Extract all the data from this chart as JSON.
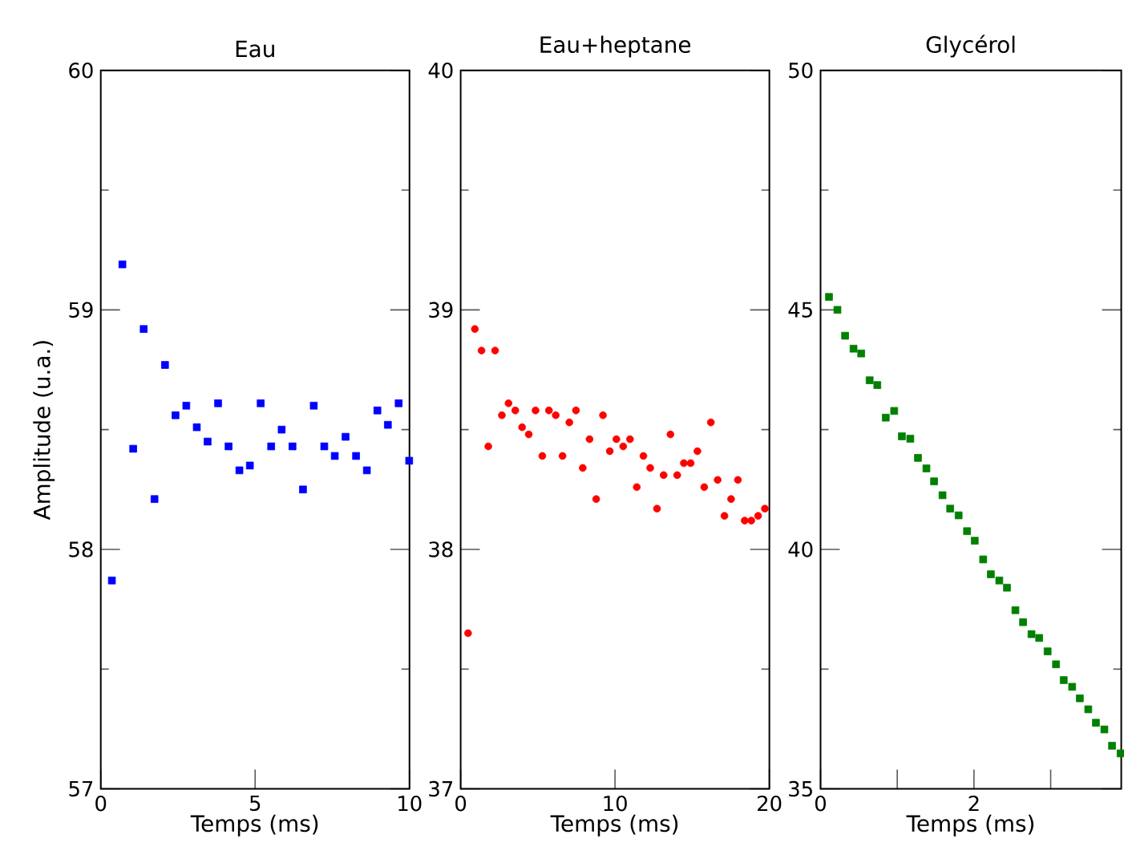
{
  "chart_data": [
    {
      "type": "scatter",
      "title": "Eau",
      "xlabel": "Temps (ms)",
      "ylabel": "Amplitude (u.a.)",
      "marker": "square",
      "color": "#0000ff",
      "x": [
        0.36,
        0.7,
        1.05,
        1.39,
        1.74,
        2.08,
        2.42,
        2.77,
        3.11,
        3.46,
        3.8,
        4.14,
        4.49,
        4.83,
        5.18,
        5.52,
        5.86,
        6.21,
        6.55,
        6.9,
        7.24,
        7.58,
        7.93,
        8.27,
        8.62,
        8.96,
        9.3,
        9.65,
        9.99
      ],
      "values": [
        57.87,
        59.19,
        58.42,
        58.92,
        58.21,
        58.77,
        58.56,
        58.6,
        58.51,
        58.45,
        58.61,
        58.43,
        58.33,
        58.35,
        58.61,
        58.43,
        58.5,
        58.43,
        58.25,
        58.6,
        58.43,
        58.39,
        58.47,
        58.39,
        58.33,
        58.58,
        58.52,
        58.61,
        58.37
      ],
      "xlim": [
        0,
        10
      ],
      "ylim": [
        57,
        60
      ],
      "xticks": [
        0,
        5,
        10
      ],
      "yticks": [
        57,
        58,
        59,
        60
      ]
    },
    {
      "type": "scatter",
      "title": "Eau+heptane",
      "xlabel": "Temps (ms)",
      "marker": "circle",
      "color": "#ff0000",
      "x": [
        0.48,
        0.92,
        1.35,
        1.79,
        2.23,
        2.67,
        3.1,
        3.54,
        3.98,
        4.41,
        4.85,
        5.29,
        5.72,
        6.16,
        6.6,
        7.04,
        7.47,
        7.91,
        8.35,
        8.78,
        9.22,
        9.66,
        10.09,
        10.53,
        10.97,
        11.41,
        11.84,
        12.28,
        12.72,
        13.15,
        13.59,
        14.03,
        14.46,
        14.9,
        15.34,
        15.78,
        16.21,
        16.65,
        17.09,
        17.52,
        17.96,
        18.4,
        18.83,
        19.27,
        19.71
      ],
      "values": [
        37.65,
        38.92,
        38.83,
        38.43,
        38.83,
        38.56,
        38.61,
        38.58,
        38.51,
        38.48,
        38.58,
        38.39,
        38.58,
        38.56,
        38.39,
        38.53,
        38.58,
        38.34,
        38.46,
        38.21,
        38.56,
        38.41,
        38.46,
        38.43,
        38.46,
        38.26,
        38.39,
        38.34,
        38.17,
        38.31,
        38.48,
        38.31,
        38.36,
        38.36,
        38.41,
        38.26,
        38.53,
        38.29,
        38.14,
        38.21,
        38.29,
        38.12,
        38.12,
        38.14,
        38.17
      ],
      "xlim": [
        0,
        20
      ],
      "ylim": [
        37,
        40
      ],
      "xticks": [
        0,
        10,
        20
      ],
      "yticks": [
        37,
        38,
        39,
        40
      ]
    },
    {
      "type": "scatter",
      "title": "Glycérol",
      "xlabel": "Temps (ms)",
      "marker": "square",
      "color": "#008000",
      "x": [
        0.11,
        0.22,
        0.32,
        0.43,
        0.53,
        0.64,
        0.74,
        0.85,
        0.96,
        1.06,
        1.17,
        1.27,
        1.38,
        1.48,
        1.59,
        1.69,
        1.8,
        1.91,
        2.01,
        2.12,
        2.22,
        2.33,
        2.43,
        2.54,
        2.64,
        2.75,
        2.85,
        2.96,
        3.07,
        3.17,
        3.28,
        3.38,
        3.49,
        3.59,
        3.7,
        3.8,
        3.91
      ],
      "values": [
        45.27,
        45.0,
        44.46,
        44.19,
        44.09,
        43.53,
        43.43,
        42.75,
        42.89,
        42.36,
        42.31,
        41.91,
        41.69,
        41.42,
        41.13,
        40.85,
        40.71,
        40.38,
        40.18,
        39.79,
        39.48,
        39.35,
        39.2,
        38.73,
        38.48,
        38.23,
        38.15,
        37.87,
        37.6,
        37.27,
        37.13,
        36.89,
        36.66,
        36.38,
        36.24,
        35.9,
        35.74
      ],
      "xlim": [
        0,
        3.92
      ],
      "ylim": [
        35,
        50
      ],
      "xticks": [
        0,
        {
          "value": 1,
          "label": null
        },
        2,
        {
          "value": 3,
          "label": null
        }
      ],
      "yticks": [
        35,
        40,
        45,
        50
      ]
    }
  ]
}
